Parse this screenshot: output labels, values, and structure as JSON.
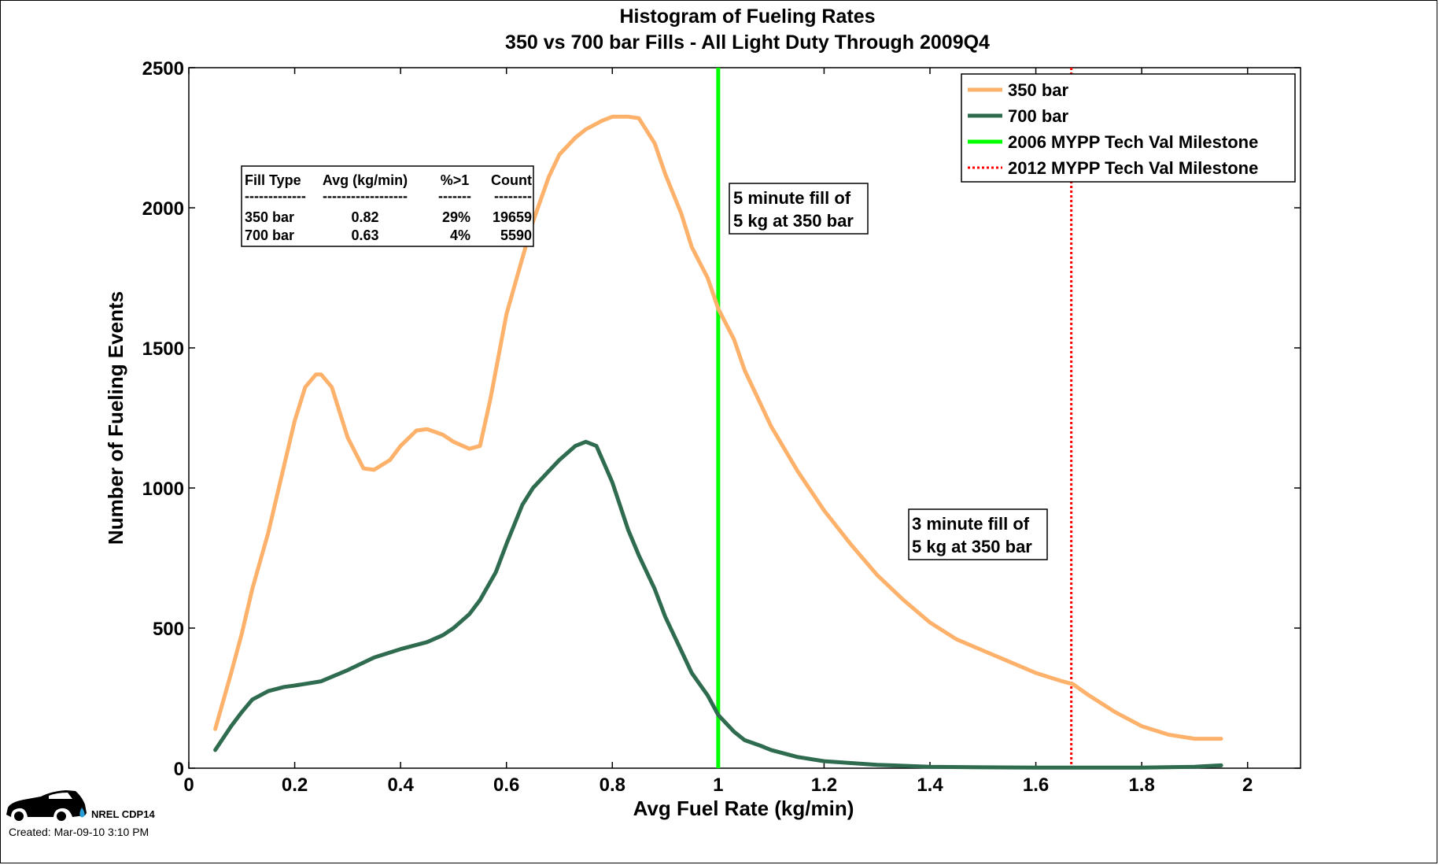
{
  "chart_data": {
    "type": "line",
    "title": "Histogram of Fueling Rates",
    "subtitle": "350 vs 700 bar Fills - All Light Duty Through 2009Q4",
    "xlabel": "Avg Fuel Rate (kg/min)",
    "ylabel": "Number of Fueling Events",
    "xlim": [
      0,
      2.1
    ],
    "ylim": [
      0,
      2500
    ],
    "xticks": [
      0,
      0.2,
      0.4,
      0.6,
      0.8,
      1,
      1.2,
      1.4,
      1.6,
      1.8,
      2
    ],
    "xtick_labels": [
      "0",
      "0.2",
      "0.4",
      "0.6",
      "0.8",
      "1",
      "1.2",
      "1.4",
      "1.6",
      "1.8",
      "2"
    ],
    "yticks": [
      0,
      500,
      1000,
      1500,
      2000,
      2500
    ],
    "ytick_labels": [
      "0",
      "500",
      "1000",
      "1500",
      "2000",
      "2500"
    ],
    "grid": false,
    "legend_position": "top-right",
    "series": [
      {
        "name": "350 bar",
        "color": "#FDB16A",
        "x": [
          0.05,
          0.08,
          0.1,
          0.12,
          0.15,
          0.18,
          0.2,
          0.22,
          0.24,
          0.25,
          0.27,
          0.3,
          0.33,
          0.35,
          0.38,
          0.4,
          0.43,
          0.45,
          0.48,
          0.5,
          0.53,
          0.55,
          0.57,
          0.6,
          0.63,
          0.65,
          0.68,
          0.7,
          0.73,
          0.75,
          0.78,
          0.8,
          0.83,
          0.85,
          0.88,
          0.9,
          0.93,
          0.95,
          0.98,
          1.0,
          1.03,
          1.05,
          1.08,
          1.1,
          1.15,
          1.2,
          1.25,
          1.3,
          1.35,
          1.4,
          1.45,
          1.5,
          1.55,
          1.6,
          1.65,
          1.67,
          1.7,
          1.75,
          1.8,
          1.85,
          1.9,
          1.95
        ],
        "y": [
          140,
          340,
          480,
          640,
          840,
          1080,
          1240,
          1360,
          1405,
          1405,
          1360,
          1180,
          1070,
          1065,
          1100,
          1150,
          1205,
          1210,
          1190,
          1165,
          1140,
          1150,
          1320,
          1620,
          1820,
          1950,
          2110,
          2190,
          2250,
          2280,
          2310,
          2325,
          2325,
          2320,
          2230,
          2120,
          1980,
          1860,
          1750,
          1640,
          1530,
          1420,
          1300,
          1220,
          1060,
          920,
          800,
          690,
          600,
          520,
          460,
          420,
          380,
          340,
          310,
          300,
          260,
          200,
          150,
          120,
          105,
          105
        ]
      },
      {
        "name": "700 bar",
        "color": "#2E6B4F",
        "x": [
          0.05,
          0.08,
          0.1,
          0.12,
          0.15,
          0.18,
          0.2,
          0.25,
          0.3,
          0.35,
          0.4,
          0.45,
          0.48,
          0.5,
          0.53,
          0.55,
          0.58,
          0.6,
          0.63,
          0.65,
          0.68,
          0.7,
          0.73,
          0.75,
          0.77,
          0.8,
          0.83,
          0.85,
          0.88,
          0.9,
          0.93,
          0.95,
          0.98,
          1.0,
          1.03,
          1.05,
          1.08,
          1.1,
          1.15,
          1.2,
          1.3,
          1.4,
          1.5,
          1.6,
          1.7,
          1.8,
          1.9,
          1.95
        ],
        "y": [
          65,
          150,
          200,
          245,
          275,
          290,
          295,
          310,
          350,
          395,
          425,
          450,
          475,
          500,
          550,
          600,
          700,
          800,
          940,
          1000,
          1060,
          1100,
          1150,
          1165,
          1150,
          1020,
          850,
          760,
          640,
          540,
          420,
          340,
          260,
          190,
          130,
          100,
          80,
          65,
          40,
          25,
          12,
          5,
          3,
          2,
          2,
          2,
          5,
          10
        ]
      }
    ],
    "reference_lines": [
      {
        "name": "2006 MYPP Tech Val Milestone",
        "x": 1.0,
        "color": "#00FF00",
        "style": "solid"
      },
      {
        "name": "2012 MYPP Tech Val Milestone",
        "x": 1.667,
        "color": "#FF0000",
        "style": "dotted"
      }
    ],
    "annotations": [
      {
        "lines": [
          "5 minute fill of",
          "5 kg at 350 bar"
        ]
      },
      {
        "lines": [
          "3 minute fill of",
          "5 kg at 350 bar"
        ]
      }
    ],
    "table": {
      "headers": [
        "Fill Type",
        "Avg (kg/min)",
        "%>1",
        "Count"
      ],
      "dashes": [
        "-------------",
        "------------------",
        "-------",
        "--------"
      ],
      "rows": [
        [
          "350 bar",
          "0.82",
          "29%",
          "19659"
        ],
        [
          "700 bar",
          "0.63",
          "4%",
          "5590"
        ]
      ]
    }
  },
  "footer": {
    "logo_label": "NREL CDP14",
    "created": "Created: Mar-09-10  3:10 PM"
  }
}
